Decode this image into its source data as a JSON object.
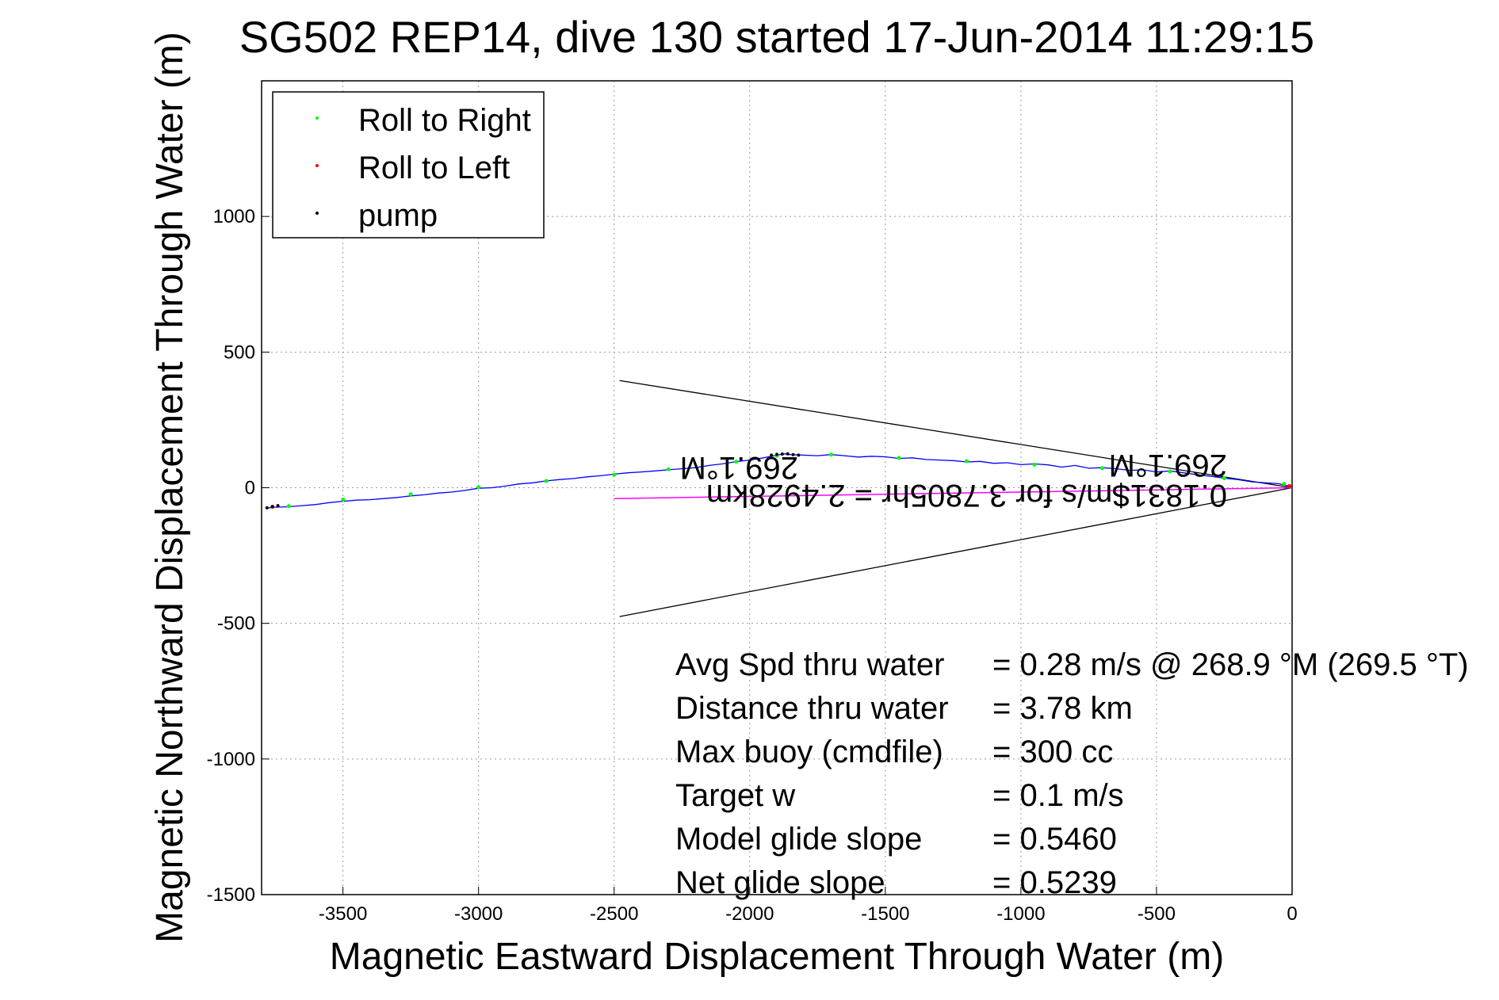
{
  "chart_data": {
    "type": "scatter",
    "title": "SG502 REP14, dive 130 started 17-Jun-2014 11:29:15",
    "xlabel": "Magnetic Eastward Displacement Through Water (m)",
    "ylabel": "Magnetic Northward Displacement Through Water (m)",
    "xlim": [
      -3800,
      0
    ],
    "ylim": [
      -1500,
      1500
    ],
    "x_ticks": [
      -3500,
      -3000,
      -2500,
      -2000,
      -1500,
      -1000,
      -500,
      0
    ],
    "y_ticks": [
      1000,
      500,
      0,
      -500,
      -1000,
      -1500
    ],
    "grid": true,
    "legend_position": "top-left",
    "colors": {
      "roll_right": "#00ff00",
      "roll_left": "#ff0000",
      "pump": "#000000",
      "track": "#0000ff",
      "heading": "#ff00ff",
      "cone": "#000000"
    },
    "legend": [
      {
        "label": "Roll to Right",
        "color": "#00ff00"
      },
      {
        "label": "Roll to Left",
        "color": "#ff0000"
      },
      {
        "label": "pump",
        "color": "#000000"
      }
    ],
    "series": [
      {
        "name": "track",
        "x": [
          0,
          -20,
          -50,
          -100,
          -150,
          -200,
          -250,
          -300,
          -350,
          -400,
          -450,
          -500,
          -550,
          -600,
          -650,
          -700,
          -750,
          -800,
          -850,
          -900,
          -950,
          -1000,
          -1050,
          -1100,
          -1150,
          -1200,
          -1250,
          -1300,
          -1350,
          -1400,
          -1450,
          -1500,
          -1550,
          -1600,
          -1650,
          -1700,
          -1750,
          -1800,
          -1850,
          -1870,
          -1900,
          -1950,
          -2000,
          -2050,
          -2100,
          -2150,
          -2200,
          -2250,
          -2300,
          -2350,
          -2400,
          -2450,
          -2500,
          -2550,
          -2600,
          -2650,
          -2700,
          -2750,
          -2800,
          -2850,
          -2900,
          -2950,
          -3000,
          -3050,
          -3100,
          -3150,
          -3200,
          -3250,
          -3300,
          -3350,
          -3400,
          -3450,
          -3500,
          -3550,
          -3600,
          -3650,
          -3700,
          -3750,
          -3780
        ],
        "y": [
          5,
          8,
          15,
          18,
          22,
          30,
          35,
          42,
          48,
          55,
          62,
          58,
          66,
          64,
          70,
          74,
          72,
          82,
          76,
          84,
          88,
          85,
          92,
          90,
          97,
          95,
          100,
          102,
          104,
          110,
          108,
          114,
          116,
          113,
          118,
          122,
          118,
          120,
          122,
          125,
          120,
          110,
          102,
          96,
          88,
          82,
          74,
          70,
          66,
          62,
          58,
          55,
          50,
          44,
          40,
          34,
          30,
          25,
          18,
          14,
          6,
          0,
          -2,
          -10,
          -16,
          -20,
          -26,
          -30,
          -36,
          -40,
          -44,
          -46,
          -50,
          -55,
          -62,
          -66,
          -70,
          -72,
          -75
        ]
      },
      {
        "name": "Roll to Right",
        "x": [
          -30,
          -250,
          -450,
          -700,
          -950,
          -1200,
          -1450,
          -1700,
          -1900,
          -2050,
          -2300,
          -2500,
          -2750,
          -3000,
          -3250,
          -3500,
          -3700
        ],
        "y": [
          14,
          35,
          60,
          72,
          85,
          98,
          110,
          122,
          118,
          96,
          68,
          48,
          25,
          2,
          -24,
          -44,
          -68
        ]
      },
      {
        "name": "Roll to Left",
        "x": [
          -10,
          -3760
        ],
        "y": [
          6,
          -70
        ]
      },
      {
        "name": "pump",
        "x": [
          -1820,
          -1840,
          -1860,
          -1880,
          -1900,
          -1920,
          -3740,
          -3760,
          -3780
        ],
        "y": [
          120,
          122,
          125,
          124,
          123,
          120,
          -66,
          -70,
          -74
        ]
      },
      {
        "name": "heading",
        "x": [
          0,
          -2500
        ],
        "y": [
          0,
          -40
        ]
      },
      {
        "name": "cone",
        "x": [
          0,
          -2480,
          0,
          -2480
        ],
        "y": [
          0,
          395,
          0,
          -475
        ]
      }
    ],
    "annotations": {
      "upside_down_1": "269.1°M",
      "upside_down_2": "0.1831$m/s for 3.7805hr = 2.4928km",
      "upside_down_3": "269.1°M"
    },
    "stats": [
      {
        "label": "Avg Spd thru water",
        "value": "=  0.28 m/s @ 268.9 °M (269.5 °T)"
      },
      {
        "label": "Distance thru water",
        "value": "=  3.78 km"
      },
      {
        "label": "Max buoy (cmdfile)",
        "value": "= 300 cc"
      },
      {
        "label": "Target w",
        "value": "= 0.1 m/s"
      },
      {
        "label": "Model glide slope",
        "value": "= 0.5460"
      },
      {
        "label": "Net glide slope",
        "value": "= 0.5239"
      }
    ]
  }
}
